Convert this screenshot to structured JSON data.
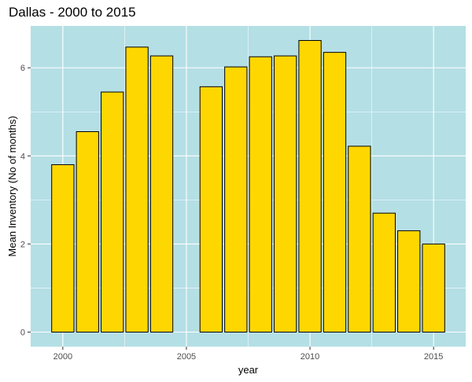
{
  "chart_data": {
    "type": "bar",
    "title": "Dallas - 2000 to 2015",
    "xlabel": "year",
    "ylabel": "Mean Inventory (No of months)",
    "x": [
      2000,
      2001,
      2002,
      2003,
      2004,
      2006,
      2007,
      2008,
      2009,
      2010,
      2011,
      2012,
      2013,
      2014,
      2015
    ],
    "values": [
      3.8,
      4.55,
      5.45,
      6.47,
      6.27,
      5.57,
      6.02,
      6.25,
      6.27,
      6.62,
      6.35,
      4.22,
      2.7,
      2.3,
      2.0
    ],
    "xlim": [
      1998.7,
      2016.3
    ],
    "ylim": [
      -0.33,
      6.95
    ],
    "x_ticks": [
      2000,
      2005,
      2010,
      2015
    ],
    "y_ticks": [
      0,
      2,
      4,
      6
    ],
    "x_tick_labels": [
      "2000",
      "2005",
      "2010",
      "2015"
    ],
    "y_tick_labels": [
      "0",
      "2",
      "4",
      "6"
    ],
    "grid": true,
    "colors": {
      "panel_background": "#b4dfe5",
      "bar_fill": "#ffd700",
      "bar_outline": "#000000",
      "grid_major": "#ffffff"
    }
  }
}
